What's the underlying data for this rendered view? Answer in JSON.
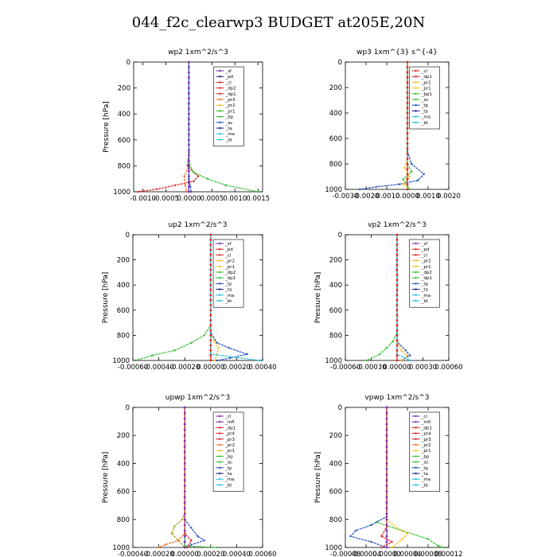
{
  "title": "044_f2c_clearwp3  BUDGET at205E,20N",
  "colors": {
    "purple": "#7b2fb5",
    "red": "#e02020",
    "orange": "#f07020",
    "yellow": "#f5c020",
    "green": "#30c030",
    "blue": "#2050c0",
    "navy": "#202080",
    "cyan": "#20c0e0",
    "olive": "#a0a020"
  },
  "chart_data": [
    {
      "type": "line",
      "title": "wp2   1xm^2/s^3",
      "ylabel": "Pressure [hPa]",
      "ylim": [
        1000,
        0
      ],
      "yticks": [
        0,
        200,
        400,
        600,
        800,
        1000
      ],
      "xlim": [
        -0.0012,
        0.0016
      ],
      "xtick_values": [
        -0.001,
        -0.0005,
        0.0,
        0.0005,
        0.001,
        0.0015
      ],
      "xtick_labels": [
        "-0.0010",
        "-0.0005",
        "0.0000",
        "0.0005",
        "0.0010",
        "0.0015"
      ],
      "legend": [
        "_sf",
        "_pd",
        "_cl",
        "_dp2",
        "_dp1",
        "_pr3",
        "_pr2",
        "_pr1",
        "_bp",
        "_ac",
        "_ta",
        "_ma",
        "_bt"
      ],
      "legend_colors": [
        "purple",
        "navy",
        "red",
        "red",
        "red",
        "orange",
        "yellow",
        "green",
        "green",
        "blue",
        "navy",
        "cyan",
        "cyan"
      ],
      "series": [
        {
          "color": "purple",
          "p": [
            0,
            1000
          ],
          "v": [
            0,
            0
          ]
        },
        {
          "color": "red",
          "p": [
            0,
            700,
            800,
            850,
            880,
            920,
            950,
            980,
            1000
          ],
          "v": [
            0,
            0,
            -3e-05,
            0.0001,
            0.0002,
            0.0001,
            -0.0003,
            -0.0007,
            -0.0011
          ]
        },
        {
          "color": "orange",
          "p": [
            0,
            800,
            880,
            950,
            1000
          ],
          "v": [
            0,
            0,
            -0.0001,
            -8e-05,
            -5e-05
          ]
        },
        {
          "color": "green",
          "p": [
            0,
            780,
            850,
            900,
            950,
            1000
          ],
          "v": [
            0,
            0,
            0.0001,
            0.0004,
            0.0008,
            0.0015
          ]
        },
        {
          "color": "blue",
          "p": [
            0,
            900,
            960,
            1000
          ],
          "v": [
            0,
            0,
            3e-05,
            5e-05
          ]
        }
      ]
    },
    {
      "type": "line",
      "title": "wp3   1xm^{3} s^{-4}",
      "ylabel": "",
      "ylim": [
        1000,
        0
      ],
      "yticks": [
        0,
        200,
        400,
        600,
        800,
        1000
      ],
      "xlim": [
        -0.003,
        0.002
      ],
      "xtick_values": [
        -0.003,
        -0.002,
        -0.001,
        0.0,
        0.001,
        0.002
      ],
      "xtick_labels": [
        "-0.0030",
        "-0.0020",
        "-0.0010",
        "0.0000",
        "0.0010",
        "0.0020"
      ],
      "legend": [
        "_cl",
        "_dp1",
        "_pr2",
        "_pr1",
        "_bp1",
        "_ac",
        "_tp",
        "_ta",
        "_ma",
        "_bt"
      ],
      "legend_colors": [
        "red",
        "red",
        "yellow",
        "yellow",
        "green",
        "green",
        "blue",
        "navy",
        "cyan",
        "cyan"
      ],
      "series": [
        {
          "color": "red",
          "p": [
            0,
            1000
          ],
          "v": [
            0,
            0
          ]
        },
        {
          "color": "blue",
          "p": [
            0,
            700,
            800,
            880,
            930,
            960,
            980,
            1000
          ],
          "v": [
            0,
            0,
            0.0002,
            0.0008,
            0.0005,
            -0.0004,
            -0.0015,
            -0.0023
          ]
        },
        {
          "color": "yellow",
          "p": [
            0,
            780,
            830,
            900,
            960,
            1000
          ],
          "v": [
            0,
            0,
            -0.00015,
            0.0001,
            -0.0002,
            0.0001
          ]
        },
        {
          "color": "green",
          "p": [
            0,
            800,
            860,
            920,
            1000
          ],
          "v": [
            0,
            0,
            0.0002,
            -0.0002,
            0.0001
          ]
        }
      ]
    },
    {
      "type": "line",
      "title": "up2   1xm^2/s^3",
      "ylabel": "Pressure [hPa]",
      "ylim": [
        1000,
        0
      ],
      "yticks": [
        0,
        200,
        400,
        600,
        800,
        1000
      ],
      "xlim": [
        -0.0006,
        0.0004
      ],
      "xtick_values": [
        -0.0006,
        -0.0004,
        -0.0002,
        0.0,
        0.0002,
        0.0004
      ],
      "xtick_labels": [
        "-0.00060",
        "-0.00040",
        "-0.00020",
        "0.00000",
        "0.00020",
        "0.00040"
      ],
      "legend": [
        "_sf",
        "_pd",
        "_cl",
        "_pr2",
        "_pr1",
        "_dp2",
        "_dp1",
        "_tp",
        "_ta",
        "_ma",
        "_bt"
      ],
      "legend_colors": [
        "purple",
        "red",
        "red",
        "yellow",
        "yellow",
        "green",
        "green",
        "blue",
        "navy",
        "cyan",
        "cyan"
      ],
      "series": [
        {
          "color": "red",
          "p": [
            0,
            1000
          ],
          "v": [
            0,
            0
          ]
        },
        {
          "color": "green",
          "p": [
            0,
            720,
            800,
            860,
            920,
            960,
            1000
          ],
          "v": [
            0,
            0,
            -5e-05,
            -0.00015,
            -0.00028,
            -0.00045,
            -0.00058
          ]
        },
        {
          "color": "blue",
          "p": [
            0,
            780,
            860,
            900,
            950,
            980,
            1000
          ],
          "v": [
            0,
            0,
            5e-05,
            0.00014,
            0.00028,
            0.00015,
            5e-05
          ]
        },
        {
          "color": "yellow",
          "p": [
            0,
            800,
            850,
            900,
            950,
            1000
          ],
          "v": [
            0,
            0,
            3e-05,
            6e-05,
            5e-05,
            3e-05
          ]
        },
        {
          "color": "cyan",
          "p": [
            0,
            950,
            1000
          ],
          "v": [
            0,
            0,
            0.00038
          ]
        }
      ]
    },
    {
      "type": "line",
      "title": "vp2   1xm^2/s^3",
      "ylabel": "Pressure [hPa]",
      "ylim": [
        1000,
        0
      ],
      "yticks": [
        0,
        200,
        400,
        600,
        800,
        1000
      ],
      "xlim": [
        -0.0006,
        0.0006
      ],
      "xtick_values": [
        -0.0006,
        -0.0003,
        0.0,
        0.0003,
        0.0006
      ],
      "xtick_labels": [
        "-0.00060",
        "-0.00030",
        "0.00000",
        "0.00030",
        "0.00060"
      ],
      "legend": [
        "_sf",
        "_pd",
        "_cl",
        "_pr2",
        "_pr1",
        "_dp2",
        "_dp1",
        "_tp",
        "_ta",
        "_ma",
        "_bt"
      ],
      "legend_colors": [
        "purple",
        "red",
        "red",
        "yellow",
        "yellow",
        "green",
        "green",
        "blue",
        "navy",
        "cyan",
        "cyan"
      ],
      "series": [
        {
          "color": "red",
          "p": [
            0,
            1000
          ],
          "v": [
            0,
            0
          ]
        },
        {
          "color": "green",
          "p": [
            0,
            780,
            850,
            900,
            950,
            1000
          ],
          "v": [
            0,
            0,
            -5e-05,
            -0.00012,
            -0.0002,
            -0.00035
          ]
        },
        {
          "color": "blue",
          "p": [
            0,
            850,
            920,
            960,
            1000
          ],
          "v": [
            0,
            0,
            0.0001,
            0.00015,
            5e-05
          ]
        },
        {
          "color": "yellow",
          "p": [
            0,
            850,
            920,
            960,
            1000
          ],
          "v": [
            0,
            0,
            5e-05,
            0.00012,
            5e-05
          ]
        },
        {
          "color": "cyan",
          "p": [
            0,
            950,
            1000
          ],
          "v": [
            0,
            0,
            0.00015
          ]
        }
      ]
    },
    {
      "type": "line",
      "title": "upwp   1xm^2/s^3",
      "ylabel": "Pressure [hPa]",
      "ylim": [
        1000,
        0
      ],
      "yticks": [
        0,
        200,
        400,
        600,
        800,
        1000
      ],
      "xlim": [
        -0.0004,
        0.0006
      ],
      "xtick_values": [
        -0.0004,
        -0.0002,
        0.0,
        0.0002,
        0.0004,
        0.0006
      ],
      "xtick_labels": [
        "-0.00040",
        "-0.00020",
        "0.00000",
        "0.00020",
        "0.00040",
        "0.00060"
      ],
      "legend": [
        "_cl",
        "_mfl",
        "_dp1",
        "_pr4",
        "_pr3",
        "_pr2",
        "_pr1",
        "_bp",
        "_ac",
        "_tp",
        "_ta",
        "_ma",
        "_bt"
      ],
      "legend_colors": [
        "purple",
        "purple",
        "red",
        "red",
        "red",
        "orange",
        "yellow",
        "green",
        "green",
        "blue",
        "navy",
        "cyan",
        "cyan"
      ],
      "series": [
        {
          "color": "purple",
          "p": [
            0,
            1000
          ],
          "v": [
            0,
            0
          ]
        },
        {
          "color": "olive",
          "p": [
            0,
            750,
            800,
            850,
            900,
            950,
            1000
          ],
          "v": [
            0,
            0,
            -2e-05,
            -8e-05,
            -0.0001,
            -5e-05,
            0
          ]
        },
        {
          "color": "orange",
          "p": [
            0,
            900,
            950,
            980,
            1000
          ],
          "v": [
            0,
            0,
            -5e-05,
            -0.00015,
            -0.0002
          ]
        },
        {
          "color": "blue",
          "p": [
            0,
            800,
            860,
            920,
            950,
            980,
            1000
          ],
          "v": [
            0,
            0,
            5e-05,
            0.0001,
            0.00015,
            5e-05,
            0
          ]
        },
        {
          "color": "green",
          "p": [
            0,
            990,
            1000
          ],
          "v": [
            0,
            0,
            0.00025
          ]
        },
        {
          "color": "red",
          "p": [
            0,
            900,
            950,
            1000
          ],
          "v": [
            0,
            0,
            5e-05,
            2e-05
          ]
        }
      ]
    },
    {
      "type": "line",
      "title": "vpwp   1xm^2/s^3",
      "ylabel": "Pressure [hPa]",
      "ylim": [
        1000,
        0
      ],
      "yticks": [
        0,
        200,
        400,
        600,
        800,
        1000
      ],
      "xlim": [
        -8e-05,
        0.00012
      ],
      "xtick_values": [
        -8e-05,
        -4e-05,
        0.0,
        4e-05,
        8e-05,
        0.00012
      ],
      "xtick_labels": [
        "-0.00008",
        "-0.00004",
        "0.00000",
        "0.00004",
        "0.00008",
        "0.00012"
      ],
      "legend": [
        "_cl",
        "_mfl",
        "_dp1",
        "_pr4",
        "_pr3",
        "_pr2",
        "_pr1",
        "_bp",
        "_ac",
        "_tp",
        "_ta",
        "_ma",
        "_bt"
      ],
      "legend_colors": [
        "purple",
        "purple",
        "red",
        "red",
        "red",
        "orange",
        "yellow",
        "green",
        "green",
        "blue",
        "navy",
        "cyan",
        "cyan"
      ],
      "series": [
        {
          "color": "purple",
          "p": [
            0,
            1000
          ],
          "v": [
            0,
            0
          ]
        },
        {
          "color": "green",
          "p": [
            0,
            780,
            820,
            880,
            940,
            990,
            1000
          ],
          "v": [
            0,
            0,
            -2e-05,
            3e-05,
            8e-05,
            0.0001,
            0.00011
          ]
        },
        {
          "color": "blue",
          "p": [
            0,
            780,
            840,
            880,
            920,
            960,
            1000
          ],
          "v": [
            0,
            0,
            -3e-05,
            -6e-05,
            -7e-05,
            -3e-05,
            0
          ]
        },
        {
          "color": "yellow",
          "p": [
            0,
            800,
            860,
            900,
            940,
            1000
          ],
          "v": [
            0,
            0,
            2e-05,
            4e-05,
            3e-05,
            1e-05
          ]
        },
        {
          "color": "red",
          "p": [
            0,
            850,
            920,
            960,
            1000
          ],
          "v": [
            0,
            0,
            -1e-05,
            1e-05,
            -1e-05
          ]
        }
      ]
    }
  ]
}
